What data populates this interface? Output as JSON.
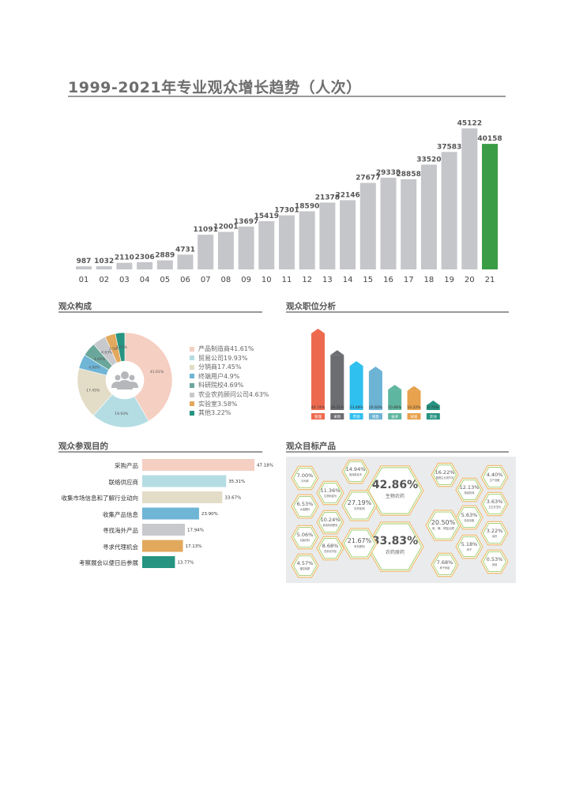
{
  "main_title": "1999-2021年专业观众增长趋势（人次）",
  "sections": {
    "composition": "观众构成",
    "position": "观众职位分析",
    "purpose": "观众参观目的",
    "products": "观众目标产品"
  },
  "colors": {
    "bar_gray": "#c4c6ca",
    "bar_green": "#3a9c44",
    "rule": "#9a9a9a"
  },
  "chart_data": [
    {
      "type": "bar",
      "title": "1999-2021年专业观众增长趋势（人次）",
      "categories": [
        "01",
        "02",
        "03",
        "04",
        "05",
        "06",
        "07",
        "08",
        "09",
        "10",
        "11",
        "12",
        "13",
        "14",
        "15",
        "16",
        "17",
        "18",
        "19",
        "20",
        "21"
      ],
      "values": [
        987,
        1032,
        2110,
        2306,
        2889,
        4731,
        11091,
        12001,
        13697,
        15419,
        17301,
        18590,
        21378,
        22146,
        27677,
        29338,
        28858,
        33520,
        37583,
        45122,
        40158
      ],
      "highlight_index": 20,
      "ylim": [
        0,
        46000
      ],
      "grid": false
    },
    {
      "type": "pie",
      "title": "观众构成",
      "donut": true,
      "center_icon": "people-group-icon",
      "legend_position": "right",
      "slices": [
        {
          "label": "产品制造商41.61%",
          "short": "41.61%",
          "value": 41.61,
          "color": "#f5cfc2"
        },
        {
          "label": "贸易公司19.93%",
          "short": "19.93%",
          "value": 19.93,
          "color": "#b4dde3"
        },
        {
          "label": "分销商17.45%",
          "short": "17.45%",
          "value": 17.45,
          "color": "#e3dcc6"
        },
        {
          "label": "终端用户4.9%",
          "short": "4.90%",
          "value": 4.9,
          "color": "#6fb5d6"
        },
        {
          "label": "科研院校4.69%",
          "short": "4.69%",
          "value": 4.69,
          "color": "#6aa79a"
        },
        {
          "label": "农业农药顾问公司4.63%",
          "short": "4.63%",
          "value": 4.63,
          "color": "#c8c9cd"
        },
        {
          "label": "实验室3.58%",
          "short": "3.58%",
          "value": 3.58,
          "color": "#e2a95c"
        },
        {
          "label": "其他3.22%",
          "short": "3.22%",
          "value": 3.22,
          "color": "#279482"
        }
      ]
    },
    {
      "type": "bar",
      "title": "观众职位分析",
      "categories": [
        "管理",
        "采购",
        "市场",
        "销售",
        "技术",
        "研发",
        "其他"
      ],
      "values": [
        40.74,
        29.31,
        23.48,
        20.6,
        10.88,
        10.22,
        0.74
      ],
      "labels": [
        "40.74%",
        "29.31%",
        "23.48%",
        "20.60%",
        "10.88%",
        "10.22%",
        "0.74%"
      ],
      "colors": [
        "#ee6a4f",
        "#6c6d70",
        "#2fc0ef",
        "#6cb3d4",
        "#5fb6a0",
        "#e8a14c",
        "#279482"
      ],
      "ylim": [
        0,
        42
      ]
    },
    {
      "type": "bar",
      "orientation": "horizontal",
      "title": "观众参观目的",
      "categories": [
        "采购产品",
        "联络供应商",
        "收集市场信息和了解行业动向",
        "收集产品信息",
        "寻找海外产品",
        "寻求代理机会",
        "考察展会以便日后参展"
      ],
      "values": [
        47.18,
        35.31,
        33.67,
        23.9,
        17.94,
        17.13,
        13.77
      ],
      "labels": [
        "47.18%",
        "35.31%",
        "33.67%",
        "23.90%",
        "17.94%",
        "17.13%",
        "13.77%"
      ],
      "colors": [
        "#f5cfc2",
        "#b4dde3",
        "#e3dcc6",
        "#6fb5d6",
        "#c8c9cd",
        "#e2a95c",
        "#279482"
      ],
      "xlim": [
        0,
        50
      ]
    },
    {
      "type": "table",
      "title": "观众目标产品",
      "layout": "hexagon-grid",
      "items": [
        {
          "pct": "42.86%",
          "label": "生物农药",
          "size": "large"
        },
        {
          "pct": "33.83%",
          "label": "农药原药",
          "size": "large"
        },
        {
          "pct": "27.19%",
          "label": "农药制剂",
          "size": "medium"
        },
        {
          "pct": "21.67%",
          "label": "有机肥料",
          "size": "medium"
        },
        {
          "pct": "20.50%",
          "label": "氮、磷、钾复合肥",
          "size": "medium"
        },
        {
          "pct": "16.22%",
          "label": "植物生长调节剂",
          "size": "small"
        },
        {
          "pct": "14.94%",
          "label": "植保新技术",
          "size": "small"
        },
        {
          "pct": "12.13%",
          "label": "植保机械",
          "size": "small"
        },
        {
          "pct": "11.36%",
          "label": "生物刺激剂",
          "size": "small"
        },
        {
          "pct": "10.24%",
          "label": "其他特种肥料",
          "size": "small"
        },
        {
          "pct": "8.68%",
          "label": "农用化学品",
          "size": "small"
        },
        {
          "pct": "7.68%",
          "label": "种子种苗",
          "size": "small"
        },
        {
          "pct": "7.00%",
          "label": "中间体",
          "size": "small"
        },
        {
          "pct": "6.53%",
          "label": "水溶肥料",
          "size": "small"
        },
        {
          "pct": "5.63%",
          "label": "检测设备",
          "size": "small"
        },
        {
          "pct": "5.18%",
          "label": "种子",
          "size": "small"
        },
        {
          "pct": "5.06%",
          "label": "包装材料",
          "size": "small"
        },
        {
          "pct": "4.57%",
          "label": "缓控释肥",
          "size": "small"
        },
        {
          "pct": "4.40%",
          "label": "生产设备",
          "size": "small"
        },
        {
          "pct": "3.63%",
          "label": "卫生杀虫剂",
          "size": "small"
        },
        {
          "pct": "3.22%",
          "label": "兽药",
          "size": "small"
        },
        {
          "pct": "0.53%",
          "label": "其他",
          "size": "small"
        }
      ]
    }
  ]
}
